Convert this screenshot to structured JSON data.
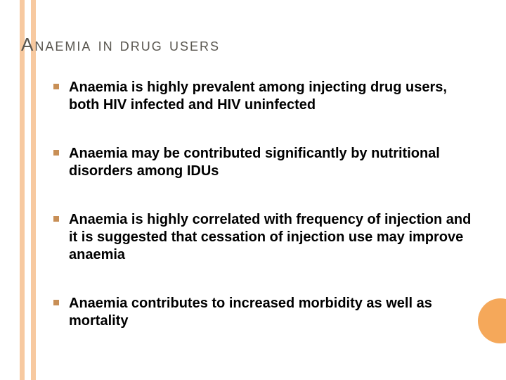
{
  "title": "Anaemia in drug users",
  "title_color": "#59564f",
  "stripe_color": "#f7c9a0",
  "bullet_color": "#c88f56",
  "circle_color": "#f5a85a",
  "text_color": "#000000",
  "background_color": "#ffffff",
  "title_fontsize": 26,
  "body_fontsize": 20,
  "bullets": [
    "Anaemia is highly prevalent among injecting drug users, both HIV infected and HIV uninfected",
    "Anaemia may be contributed significantly by nutritional disorders among IDUs",
    "Anaemia is highly correlated with frequency of injection and it is suggested that cessation of injection use may improve anaemia",
    "Anaemia contributes to increased morbidity as well as mortality"
  ]
}
